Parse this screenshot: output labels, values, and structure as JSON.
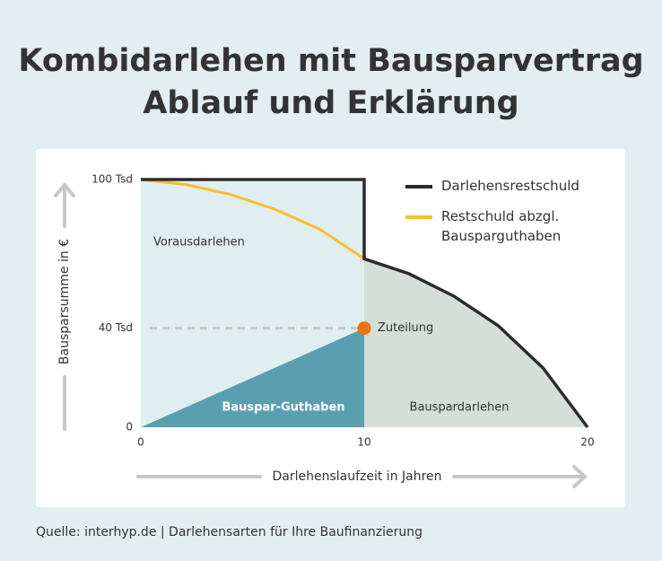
{
  "chart_data": {
    "type": "line",
    "title": "Kombidarlehen mit Bausparvertrag",
    "subtitle": "Ablauf und Erklärung",
    "xlabel": "Darlehenslaufzeit in Jahren",
    "ylabel": "Bausparsumme in €",
    "source": "Quelle: interhyp.de | Darlehensarten für Ihre Baufinanzierung",
    "xlim": [
      0,
      20
    ],
    "xticks": [
      0,
      10,
      20
    ],
    "ylim": [
      0,
      100
    ],
    "yticks": [
      0,
      {
        "value": 40,
        "label": "40 Tsd"
      },
      {
        "value": 100,
        "label": "100 Tsd"
      }
    ],
    "series": [
      {
        "name": "Darlehensrestschuld",
        "color": "#2b2b2b",
        "x": [
          0,
          10,
          10,
          12,
          14,
          16,
          18,
          20
        ],
        "values": [
          100,
          100,
          68,
          62,
          53,
          41,
          24,
          0
        ]
      },
      {
        "name": "Restschuld abzgl. Bausparguthaben",
        "color": "#f6c02c",
        "x": [
          0,
          2,
          4,
          6,
          8,
          10
        ],
        "values": [
          100,
          98,
          94,
          88,
          80,
          68
        ]
      }
    ],
    "regions": [
      {
        "label": "Vorausdarlehen",
        "color": "#e1eef0",
        "x0": 0,
        "x1": 10
      },
      {
        "label": "Bauspardarlehen",
        "color": "#d5ded8",
        "x0": 10,
        "x1": 20
      }
    ],
    "areas": [
      {
        "name": "Bauspar-Guthaben",
        "color": "#5a9fb0",
        "x": [
          0,
          10
        ],
        "values": [
          0,
          40
        ]
      }
    ],
    "annotations": [
      {
        "text": "Zuteilung",
        "x": 10,
        "y": 40,
        "color": "#e8750e"
      }
    ]
  }
}
